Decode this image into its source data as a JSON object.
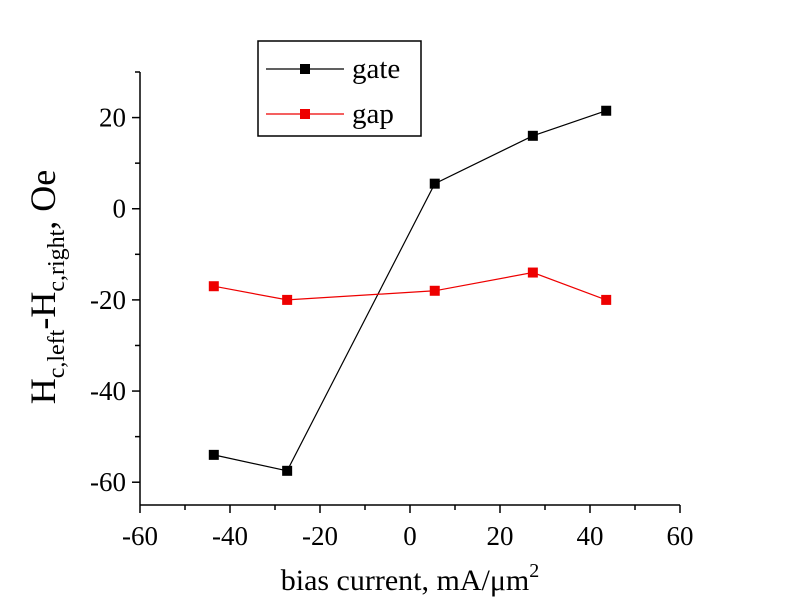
{
  "chart_data": {
    "type": "line",
    "xlabel": "bias current, mA/μm",
    "xlabel_sup": "2",
    "ylabel": {
      "base1": "H",
      "sub1": "c,left",
      "mid": "-H",
      "sub2": "c,right",
      "tail": ", Oe"
    },
    "xlim": [
      -60,
      60
    ],
    "ylim": [
      -65,
      30
    ],
    "x_ticks": [
      -60,
      -40,
      -20,
      0,
      20,
      40,
      60
    ],
    "x_tick_labels": [
      "-60",
      "-40",
      "-20",
      "0",
      "20",
      "40",
      "60"
    ],
    "y_ticks": [
      -60,
      -40,
      -20,
      0,
      20
    ],
    "y_tick_labels": [
      "-60",
      "-40",
      "-20",
      "0",
      "20"
    ],
    "grid": false,
    "legend_position": "top-left",
    "series": [
      {
        "name": "gate",
        "color": "#000000",
        "marker": "square",
        "x": [
          -43.6,
          -27.3,
          5.5,
          27.3,
          43.6
        ],
        "y": [
          -54,
          -57.5,
          5.5,
          16,
          21.5
        ]
      },
      {
        "name": "gap",
        "color": "#ee0000",
        "marker": "square",
        "x": [
          -43.6,
          -27.3,
          5.5,
          27.3,
          43.6
        ],
        "y": [
          -17,
          -20,
          -18,
          -14,
          -20
        ]
      }
    ]
  }
}
